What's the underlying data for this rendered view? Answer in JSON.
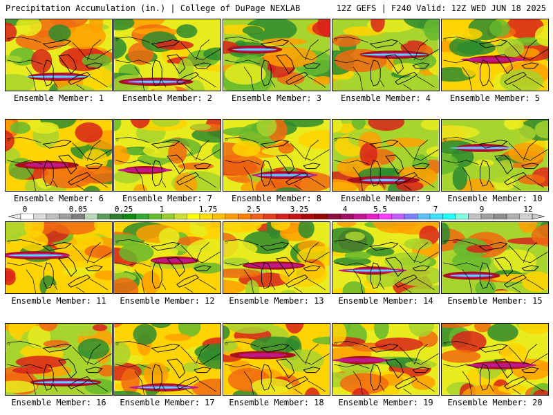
{
  "header": {
    "title_left": "Precipitation Accumulation (in.) | College of DuPage NEXLAB",
    "title_right": "12Z GEFS | F240 Valid: 12Z WED JUN 18 2025"
  },
  "panels": [
    {
      "label": "Ensemble Member: 1"
    },
    {
      "label": "Ensemble Member: 2"
    },
    {
      "label": "Ensemble Member: 3"
    },
    {
      "label": "Ensemble Member: 4"
    },
    {
      "label": "Ensemble Member: 5"
    },
    {
      "label": "Ensemble Member: 6"
    },
    {
      "label": "Ensemble Member: 7"
    },
    {
      "label": "Ensemble Member: 8"
    },
    {
      "label": "Ensemble Member: 9"
    },
    {
      "label": "Ensemble Member: 10"
    },
    {
      "label": "Ensemble Member: 11"
    },
    {
      "label": "Ensemble Member: 12"
    },
    {
      "label": "Ensemble Member: 13"
    },
    {
      "label": "Ensemble Member: 14"
    },
    {
      "label": "Ensemble Member: 15"
    },
    {
      "label": "Ensemble Member: 16"
    },
    {
      "label": "Ensemble Member: 17"
    },
    {
      "label": "Ensemble Member: 18"
    },
    {
      "label": "Ensemble Member: 19"
    },
    {
      "label": "Ensemble Member: 20"
    }
  ],
  "colorbar": {
    "labels": [
      "0",
      "0.05",
      "0.25",
      "1",
      "1.75",
      "2.5",
      "3.25",
      "4",
      "5.5",
      "7",
      "9",
      "12"
    ],
    "colors": [
      "#ffffff",
      "#d9d9d9",
      "#bdbdbd",
      "#9e9e9e",
      "#7f7f7f",
      "#b8d8b8",
      "#5a9a5a",
      "#2e7d32",
      "#118811",
      "#33aa33",
      "#66bb33",
      "#99cc33",
      "#ccdd33",
      "#ffff00",
      "#ffe000",
      "#ffc000",
      "#ffa000",
      "#ff8000",
      "#f06020",
      "#e04020",
      "#d02020",
      "#c01818",
      "#a80c0c",
      "#900808",
      "#8a1040",
      "#a01060",
      "#c01890",
      "#e020c0",
      "#ff40ff",
      "#c060ff",
      "#8080ff",
      "#60c0ff",
      "#40e0ff",
      "#20ffff",
      "#80ffe0",
      "#c0c0c0",
      "#a0a0a0",
      "#909090",
      "#b0b0b0",
      "#d0d0d0"
    ]
  }
}
